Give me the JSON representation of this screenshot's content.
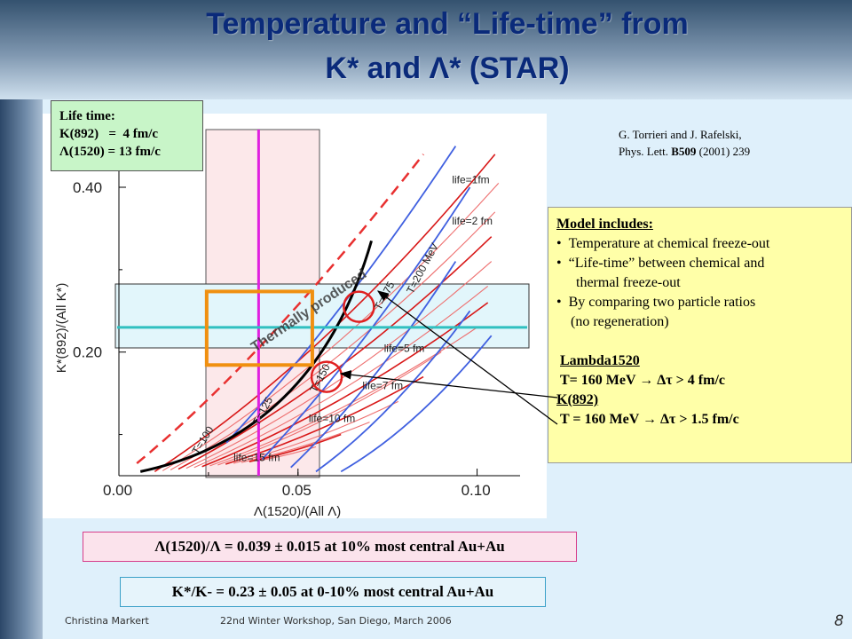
{
  "slide": {
    "title_line1": "Temperature and “Life-time” from",
    "title_line2": "K* and Λ* (STAR)",
    "page_number": "8"
  },
  "footer": {
    "author": "Christina Markert",
    "event": "22nd Winter Workshop, San Diego, March 2006"
  },
  "life_box": {
    "heading": "Life time:",
    "line1": "K(892)   =  4 fm/c",
    "line2": "Λ(1520) = 13 fm/c"
  },
  "reference": {
    "line1": "G. Torrieri  and J. Rafelski,",
    "line2_prefix": "Phys. Lett. ",
    "line2_volume": "B509",
    "line2_suffix": " (2001) 239"
  },
  "model_box": {
    "heading": "Model includes:",
    "bullet1": "Temperature at chemical freeze-out",
    "bullet2a": "“Life-time”  between chemical and",
    "bullet2b": "thermal freeze-out",
    "bullet3a": "By comparing two particle ratios",
    "bullet3b": "(no regeneration)",
    "lambda_label": "Lambda1520",
    "lambda_result": "T= 160 MeV → Δτ  > 4 fm/c",
    "k_label": "K(892)",
    "k_result": "T = 160 MeV →  Δτ  > 1.5 fm/c"
  },
  "results": {
    "lambda_ratio": "Λ(1520)/Λ = 0.039 ± 0.015  at 10% most central Au+Au",
    "k_ratio": "K*/K- = 0.23 ± 0.05  at 0-10% most central Au+Au"
  },
  "chart_data": {
    "type": "line",
    "xlabel": "Λ(1520)/(All Λ)",
    "ylabel": "K*(892)/(All K*)",
    "x_ticks": [
      "0.00",
      "0.05",
      "0.10"
    ],
    "y_ticks": [
      "0.20",
      "0.40"
    ],
    "xlim": [
      0.0,
      0.112
    ],
    "ylim": [
      0.05,
      0.47
    ],
    "thermally_produced_label": "Thermally produced",
    "temperature_labels": [
      "T=100",
      "T=125",
      "T=150",
      "T=175",
      "T=200 MeV"
    ],
    "lifetime_labels": [
      "life=1fm",
      "life=2 fm",
      "life=5 fm",
      "life=7 fm",
      "life=10 fm",
      "life=15 fm"
    ],
    "measured_lambda_ratio": 0.039,
    "measured_lambda_error": 0.015,
    "measured_k_ratio": 0.23,
    "measured_k_error": 0.05,
    "colors": {
      "thermal": "#e83030",
      "lifetime_lines": "#d82020",
      "temperature_lines": "#4060e0",
      "fit_curve": "#000000",
      "measurement_line_x": "#e020e0",
      "measurement_line_y": "#30c0c0",
      "overlap_box": "#f09010"
    }
  }
}
